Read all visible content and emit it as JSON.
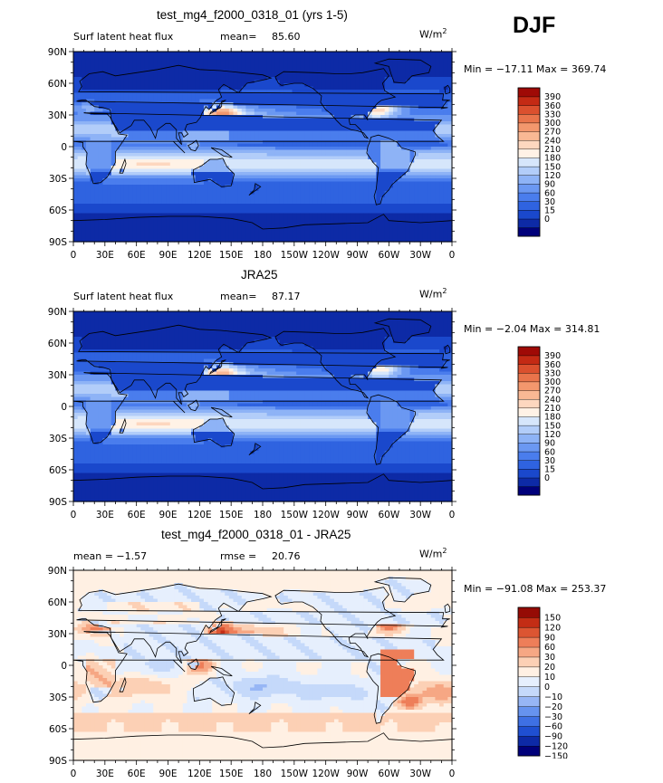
{
  "season": "DJF",
  "palettes": {
    "abs": [
      "#00007a",
      "#0d2aa6",
      "#1a48cc",
      "#2f63e0",
      "#4a7ded",
      "#6b98f2",
      "#8eb3f6",
      "#b2cdf9",
      "#d6e6fb",
      "#fff2e6",
      "#fdd7bf",
      "#f9b894",
      "#f3976d",
      "#e9744b",
      "#db502e",
      "#c42a14",
      "#9f0a06"
    ],
    "diff": [
      "#00007a",
      "#0d2aa6",
      "#1f4fd1",
      "#3e70e4",
      "#6693ef",
      "#97b6f5",
      "#c5d9fa",
      "#e6effd",
      "#fff0e3",
      "#fcd0b5",
      "#f6a784",
      "#ee7e59",
      "#dc5532",
      "#c32d15",
      "#950b05"
    ]
  },
  "panels": [
    {
      "title": "test_mg4_f2000_0318_01 (yrs 1-5)",
      "left_label": "Surf latent heat flux",
      "stat_label": "mean=",
      "stat_value": "85.60",
      "units": "W/m",
      "units_exp": "2",
      "minmax": "Min = −17.11 Max = 369.74",
      "palette": "abs",
      "chart_data": {
        "type": "heatmap",
        "x_ticks": [
          "0",
          "30E",
          "60E",
          "90E",
          "120E",
          "150E",
          "180",
          "150W",
          "120W",
          "90W",
          "60W",
          "30W",
          "0"
        ],
        "y_ticks": [
          "90N",
          "60N",
          "30N",
          "0",
          "30S",
          "60S",
          "90S"
        ],
        "colorbar_labels": [
          "390",
          "360",
          "330",
          "300",
          "270",
          "240",
          "210",
          "180",
          "150",
          "120",
          "90",
          "60",
          "30",
          "15",
          "0"
        ],
        "mean": 85.6,
        "min": -17.11,
        "max": 369.74
      }
    },
    {
      "title": "JRA25",
      "left_label": "Surf latent heat flux",
      "stat_label": "mean=",
      "stat_value": "87.17",
      "units": "W/m",
      "units_exp": "2",
      "minmax": "Min =  −2.04 Max = 314.81",
      "palette": "abs",
      "chart_data": {
        "type": "heatmap",
        "x_ticks": [
          "0",
          "30E",
          "60E",
          "90E",
          "120E",
          "150E",
          "180",
          "150W",
          "120W",
          "90W",
          "60W",
          "30W",
          "0"
        ],
        "y_ticks": [
          "90N",
          "60N",
          "30N",
          "0",
          "30S",
          "60S",
          "90S"
        ],
        "colorbar_labels": [
          "390",
          "360",
          "330",
          "300",
          "270",
          "240",
          "210",
          "180",
          "150",
          "120",
          "90",
          "60",
          "30",
          "15",
          "0"
        ],
        "mean": 87.17,
        "min": -2.04,
        "max": 314.81
      }
    },
    {
      "title": "test_mg4_f2000_0318_01 - JRA25",
      "left_label": "mean =   −1.57",
      "stat_label": "rmse =",
      "stat_value": "20.76",
      "units": "W/m",
      "units_exp": "2",
      "minmax": "Min = −91.08 Max = 253.37",
      "palette": "diff",
      "chart_data": {
        "type": "heatmap",
        "x_ticks": [
          "0",
          "30E",
          "60E",
          "90E",
          "120E",
          "150E",
          "180",
          "150W",
          "120W",
          "90W",
          "60W",
          "30W",
          "0"
        ],
        "y_ticks": [
          "90N",
          "60N",
          "30N",
          "0",
          "30S",
          "60S",
          "90S"
        ],
        "colorbar_labels": [
          "150",
          "120",
          "90",
          "60",
          "30",
          "20",
          "10",
          "0",
          "−10",
          "−20",
          "−30",
          "−60",
          "−90",
          "−120",
          "−150"
        ],
        "mean": -1.57,
        "rmse": 20.76,
        "min": -91.08,
        "max": 253.37
      }
    }
  ]
}
